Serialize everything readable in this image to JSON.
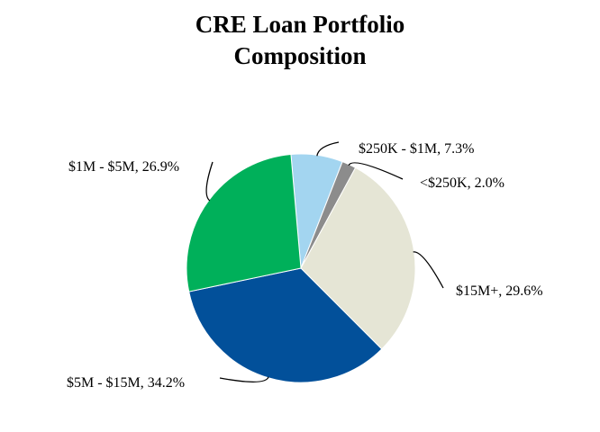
{
  "chart_data": {
    "type": "pie",
    "title": [
      "CRE Loan Portfolio",
      "Composition"
    ],
    "slices": [
      {
        "label": "$250K - $1M, 7.3%",
        "category": "$250K - $1M",
        "value": 7.3,
        "color": "#a3d5f0"
      },
      {
        "label": "<$250K, 2.0%",
        "category": "<$250K",
        "value": 2.0,
        "color": "#8c8c8c"
      },
      {
        "label": "$15M+, 29.6%",
        "category": "$15M+",
        "value": 29.6,
        "color": "#e5e5d5"
      },
      {
        "label": "$5M - $15M, 34.2%",
        "category": "$5M - $15M",
        "value": 34.2,
        "color": "#02509a"
      },
      {
        "label": "$1M - $5M, 26.9%",
        "category": "$1M - $5M",
        "value": 26.9,
        "color": "#00b05a"
      }
    ],
    "start_angle_deg": -5,
    "direction": "clockwise",
    "legend": "none",
    "label_placement": "outside"
  }
}
